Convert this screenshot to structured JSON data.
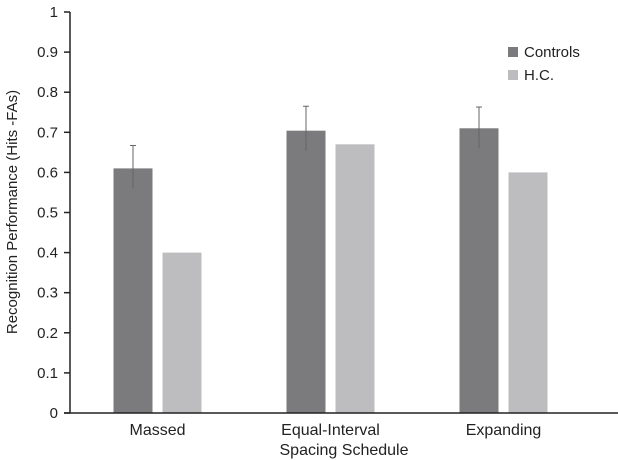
{
  "chart_data": {
    "type": "bar",
    "title": "",
    "xlabel": "Spacing Schedule",
    "ylabel": "Recognition Performance (Hits -FAs)",
    "categories": [
      "Massed",
      "Equal-Interval",
      "Expanding"
    ],
    "ylim": [
      0,
      1
    ],
    "yticks": [
      "0",
      "0.1",
      "0.2",
      "0.3",
      "0.4",
      "0.5",
      "0.6",
      "0.7",
      "0.8",
      "0.9",
      "1"
    ],
    "series": [
      {
        "name": "Controls",
        "color": "#7b7b7d",
        "values": [
          0.61,
          0.704,
          0.71
        ],
        "error_upper": [
          0.667,
          0.765,
          0.763
        ]
      },
      {
        "name": "H.C.",
        "color": "#bdbdbf",
        "values": [
          0.4,
          0.67,
          0.6
        ]
      }
    ],
    "legend": "top-right",
    "grid": false
  }
}
